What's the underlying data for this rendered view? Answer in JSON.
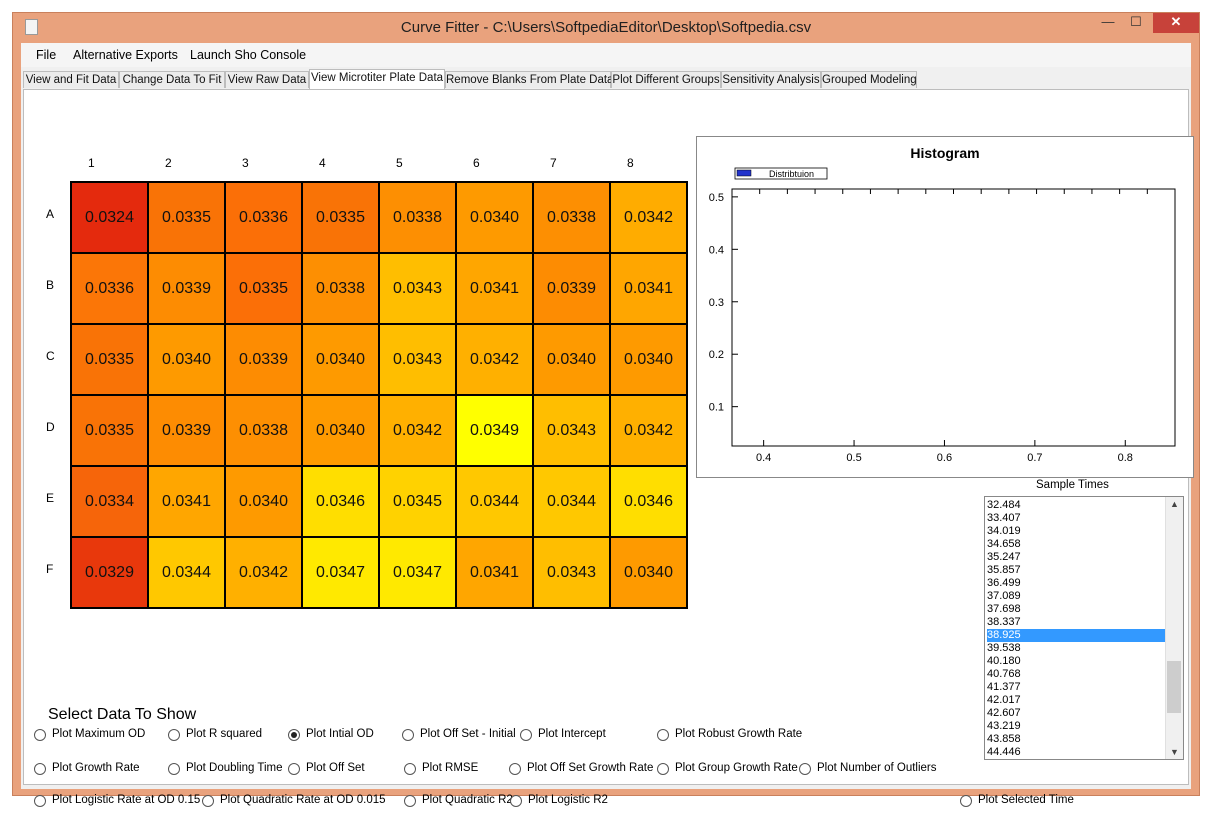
{
  "window": {
    "title": "Curve Fitter - C:\\Users\\SoftpediaEditor\\Desktop\\Softpedia.csv"
  },
  "menu": [
    "File",
    "Alternative Exports",
    "Launch Sho Console"
  ],
  "tabs": [
    "View and Fit Data",
    "Change Data To Fit",
    "View Raw Data",
    "View Microtiter Plate Data",
    "Remove Blanks From Plate Data",
    "Plot Different Groups",
    "Sensitivity Analysis",
    "Grouped Modeling"
  ],
  "active_tab": 3,
  "plate": {
    "columns": [
      "1",
      "2",
      "3",
      "4",
      "5",
      "6",
      "7",
      "8"
    ],
    "rows": [
      "A",
      "B",
      "C",
      "D",
      "E",
      "F"
    ],
    "values": [
      [
        "0.0324",
        "0.0335",
        "0.0336",
        "0.0335",
        "0.0338",
        "0.0340",
        "0.0338",
        "0.0342"
      ],
      [
        "0.0336",
        "0.0339",
        "0.0335",
        "0.0338",
        "0.0343",
        "0.0341",
        "0.0339",
        "0.0341"
      ],
      [
        "0.0335",
        "0.0340",
        "0.0339",
        "0.0340",
        "0.0343",
        "0.0342",
        "0.0340",
        "0.0340"
      ],
      [
        "0.0335",
        "0.0339",
        "0.0338",
        "0.0340",
        "0.0342",
        "0.0349",
        "0.0343",
        "0.0342"
      ],
      [
        "0.0334",
        "0.0341",
        "0.0340",
        "0.0346",
        "0.0345",
        "0.0344",
        "0.0344",
        "0.0346"
      ],
      [
        "0.0329",
        "0.0344",
        "0.0342",
        "0.0347",
        "0.0347",
        "0.0341",
        "0.0343",
        "0.0340"
      ]
    ],
    "colors": [
      [
        "#e42a0d",
        "#f97306",
        "#fb6f07",
        "#f97306",
        "#fd8f02",
        "#fe9a00",
        "#fd8f02",
        "#ffac00"
      ],
      [
        "#fb7607",
        "#fd8c02",
        "#fb6f07",
        "#fd8f02",
        "#ffbe00",
        "#ffa600",
        "#fd8c02",
        "#ffa600"
      ],
      [
        "#f97306",
        "#fe9a00",
        "#fd8c02",
        "#fe9a00",
        "#ffbe00",
        "#ffb000",
        "#fe9a00",
        "#fe9a00"
      ],
      [
        "#f97306",
        "#fd8c02",
        "#fd8f02",
        "#fe9a00",
        "#ffb000",
        "#ffff00",
        "#ffbe00",
        "#ffb000"
      ],
      [
        "#f6650a",
        "#ffa600",
        "#fe9a00",
        "#ffde00",
        "#ffd200",
        "#ffc800",
        "#ffc800",
        "#ffde00"
      ],
      [
        "#e8380c",
        "#ffc800",
        "#ffb000",
        "#ffe900",
        "#ffe900",
        "#ffa600",
        "#ffbe00",
        "#fe9a00"
      ]
    ]
  },
  "chart_data": {
    "type": "bar",
    "title": "Histogram",
    "series": [
      {
        "name": "Distribtuion",
        "values": []
      }
    ],
    "x_ticks": [
      "0.4",
      "0.5",
      "0.6",
      "0.7",
      "0.8"
    ],
    "y_ticks": [
      "0.1",
      "0.2",
      "0.3",
      "0.4",
      "0.5"
    ],
    "xlim": [
      0.365,
      0.855
    ],
    "ylim": [
      0.025,
      0.515
    ],
    "grid": false,
    "legend": "top-left"
  },
  "sample_times": {
    "label": "Sample Times",
    "items": [
      "32.484",
      "33.407",
      "34.019",
      "34.658",
      "35.247",
      "35.857",
      "36.499",
      "37.089",
      "37.698",
      "38.337",
      "38.925",
      "39.538",
      "40.180",
      "40.768",
      "41.377",
      "42.017",
      "42.607",
      "43.219",
      "43.858",
      "44.446"
    ],
    "selected_index": 10
  },
  "select_data": {
    "title": "Select Data To Show",
    "options": [
      {
        "label": "Plot Maximum OD",
        "checked": false
      },
      {
        "label": "Plot R squared",
        "checked": false
      },
      {
        "label": "Plot Intial OD",
        "checked": true
      },
      {
        "label": "Plot Off Set - Initial",
        "checked": false
      },
      {
        "label": "Plot Intercept",
        "checked": false
      },
      {
        "label": "Plot Robust Growth Rate",
        "checked": false
      },
      {
        "label": "Plot Growth Rate",
        "checked": false
      },
      {
        "label": "Plot Doubling Time",
        "checked": false
      },
      {
        "label": "Plot Off Set",
        "checked": false
      },
      {
        "label": "Plot RMSE",
        "checked": false
      },
      {
        "label": "Plot Off Set Growth Rate",
        "checked": false
      },
      {
        "label": "Plot Group Growth Rate",
        "checked": false
      },
      {
        "label": "Plot Number of Outliers",
        "checked": false
      },
      {
        "label": "Plot Logistic Rate at OD 0.15",
        "checked": false
      },
      {
        "label": "Plot Quadratic Rate at OD 0.015",
        "checked": false
      },
      {
        "label": "Plot Quadratic R2",
        "checked": false
      },
      {
        "label": "Plot Logistic R2",
        "checked": false
      },
      {
        "label": "Plot Selected Time",
        "checked": false
      }
    ]
  }
}
